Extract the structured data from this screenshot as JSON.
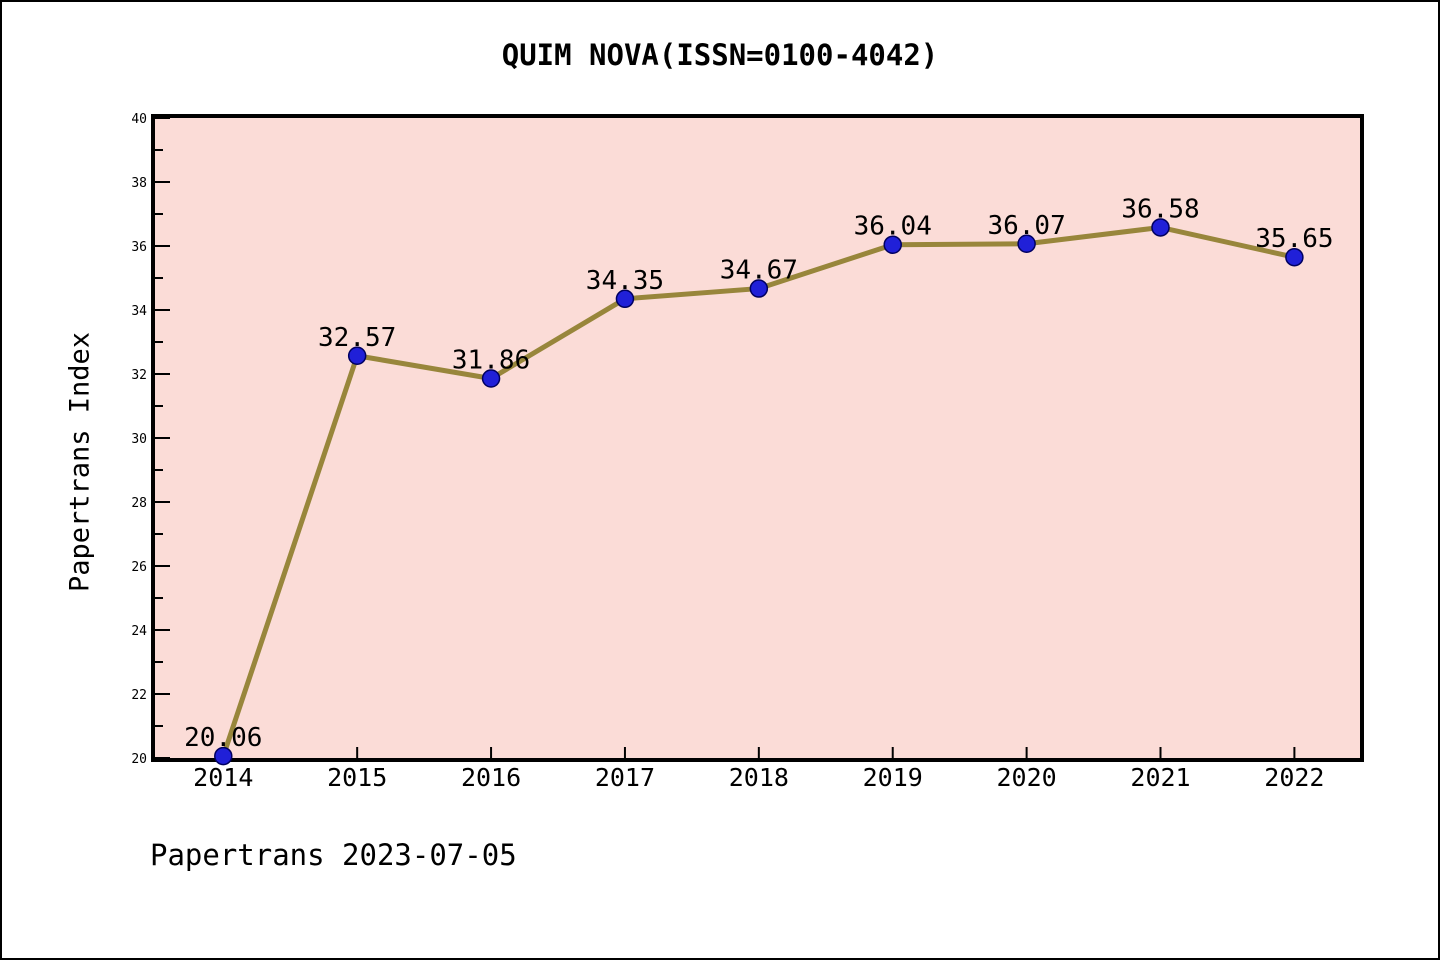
{
  "title": "QUIM NOVA(ISSN=0100-4042)",
  "footer": "Papertrans 2023-07-05",
  "chart_data": {
    "type": "line",
    "title": "QUIM NOVA(ISSN=0100-4042)",
    "xlabel": "",
    "ylabel": "Papertrans Index",
    "x": [
      2014,
      2015,
      2016,
      2017,
      2018,
      2019,
      2020,
      2021,
      2022
    ],
    "values": [
      20.06,
      32.57,
      31.86,
      34.35,
      34.67,
      36.04,
      36.07,
      36.58,
      35.65
    ],
    "point_labels": [
      "20.06",
      "32.57",
      "31.86",
      "34.35",
      "34.67",
      "36.04",
      "36.07",
      "36.58",
      "35.65"
    ],
    "x_tick_labels": [
      "2014",
      "2015",
      "2016",
      "2017",
      "2018",
      "2019",
      "2020",
      "2021",
      "2022"
    ],
    "y_tick_labels": [
      "20",
      "22",
      "24",
      "26",
      "28",
      "30",
      "32",
      "34",
      "36",
      "38",
      "40"
    ],
    "ylim": [
      20,
      40
    ],
    "y_major_step": 2,
    "y_minor_step": 1,
    "xlim": [
      2013.49,
      2022.49
    ],
    "grid": false,
    "legend": "none",
    "colors": {
      "line": "#98863b",
      "marker_fill": "#2020d8",
      "marker_edge": "#000060",
      "plot_bg": "#fbdcd7",
      "frame": "#000000",
      "text": "#000000",
      "page_bg": "#ffffff"
    }
  }
}
